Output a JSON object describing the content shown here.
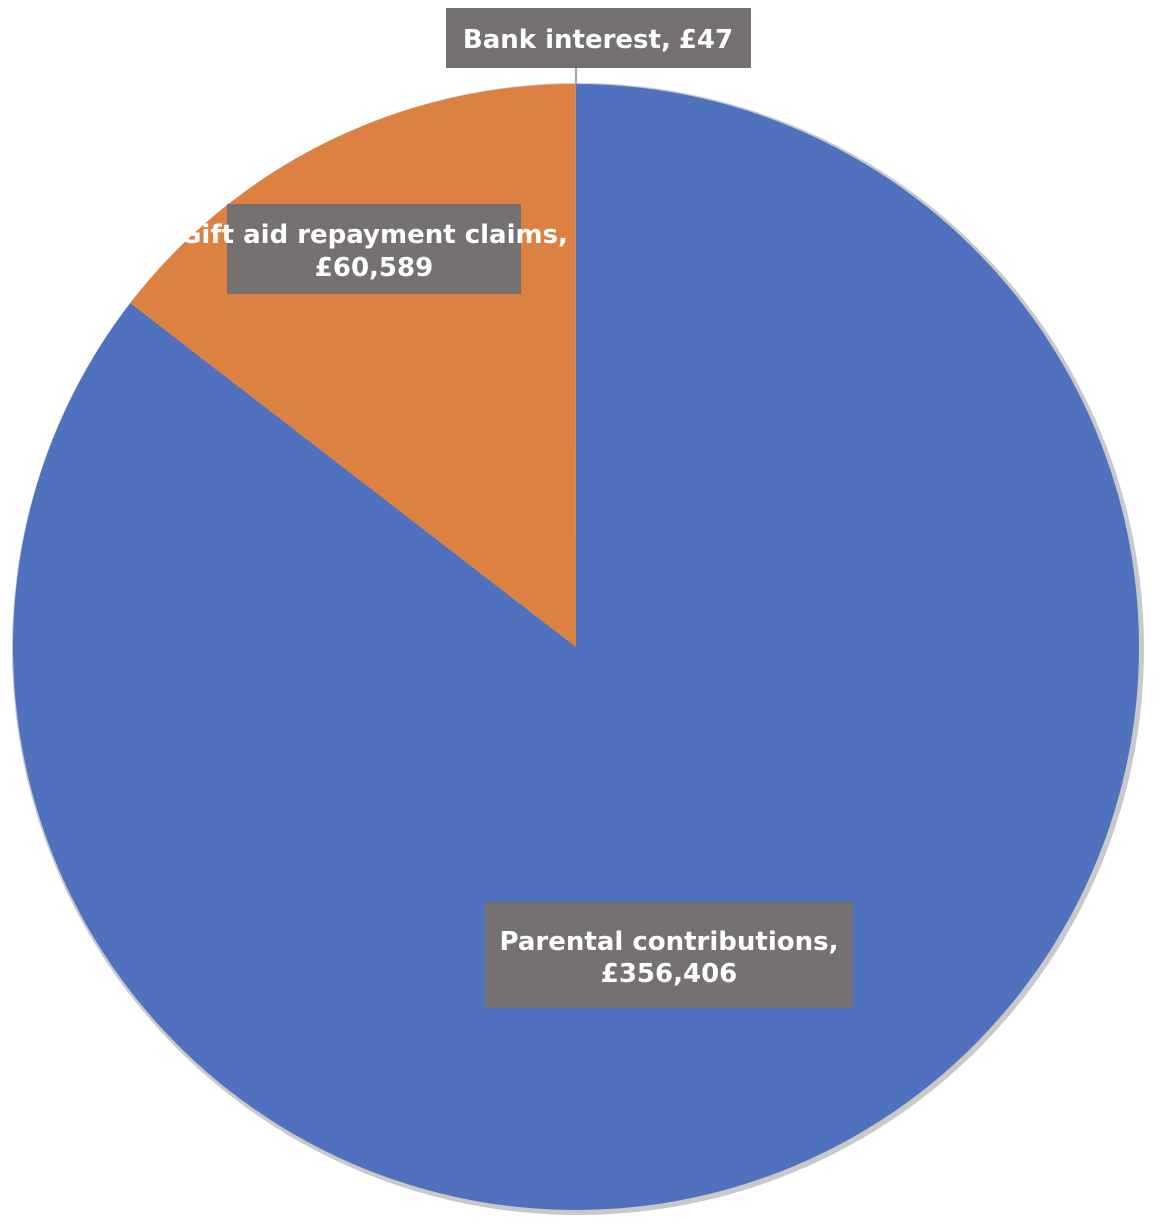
{
  "chart_data": {
    "type": "pie",
    "title": "",
    "slices": [
      {
        "label": "Parental contributions",
        "value": 356406,
        "display_label": "Parental contributions,",
        "display_value": "£356,406",
        "color": "#5071be"
      },
      {
        "label": "Gift aid repayment claims",
        "value": 60589,
        "display_label": "Gift aid repayment claims,",
        "display_value": "£60,589",
        "color": "#dc8142"
      },
      {
        "label": "Bank interest",
        "value": 47,
        "display_label": "Bank interest,",
        "display_value": "£47",
        "color": "#a5a5a5"
      }
    ],
    "label_background": "#767171",
    "label_text_color": "#ffffff",
    "edge_shadow_color": "#c9c9c9",
    "legend": "none"
  }
}
